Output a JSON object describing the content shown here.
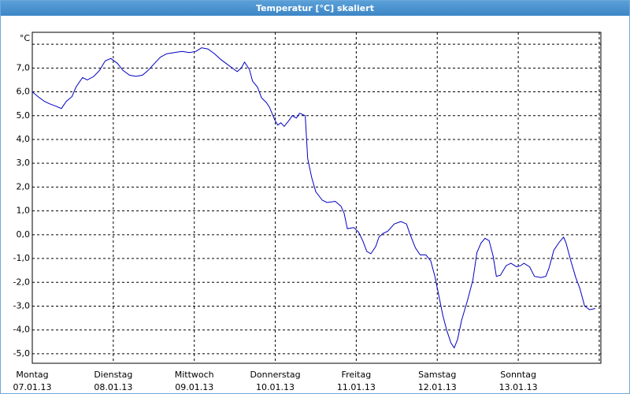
{
  "window_title": "Temperatur [°C] skaliert",
  "chart_data": {
    "type": "line",
    "xlim": [
      0,
      7.02
    ],
    "ylim": [
      -5.4,
      8.5
    ],
    "grid": true,
    "xticks": [
      {
        "value": 0,
        "label": "Montag",
        "date": "07.01.13"
      },
      {
        "value": 1,
        "label": "Dienstag",
        "date": "08.01.13"
      },
      {
        "value": 2,
        "label": "Mittwoch",
        "date": "09.01.13"
      },
      {
        "value": 3,
        "label": "Donnerstag",
        "date": "10.01.13"
      },
      {
        "value": 4,
        "label": "Freitag",
        "date": "11.01.13"
      },
      {
        "value": 5,
        "label": "Samstag",
        "date": "12.01.13"
      },
      {
        "value": 6,
        "label": "Sonntag",
        "date": "13.01.13"
      },
      {
        "value": 7
      }
    ],
    "yticks": [
      {
        "value": -5,
        "label": "-5,0"
      },
      {
        "value": -4,
        "label": "-4,0"
      },
      {
        "value": -3,
        "label": "-3,0"
      },
      {
        "value": -2,
        "label": "-2,0"
      },
      {
        "value": -1,
        "label": "-1,0"
      },
      {
        "value": 0,
        "label": "0,0"
      },
      {
        "value": 1,
        "label": "1,0"
      },
      {
        "value": 2,
        "label": "2,0"
      },
      {
        "value": 3,
        "label": "3,0"
      },
      {
        "value": 4,
        "label": "4,0"
      },
      {
        "value": 5,
        "label": "5,0"
      },
      {
        "value": 6,
        "label": "6,0"
      },
      {
        "value": 7,
        "label": "7,0"
      },
      {
        "value": 8,
        "label": "°C"
      }
    ],
    "series": [
      {
        "color": "#0000c0",
        "x": [
          0,
          0.07,
          0.15,
          0.21,
          0.29,
          0.36,
          0.42,
          0.49,
          0.54,
          0.62,
          0.68,
          0.76,
          0.83,
          0.9,
          0.97,
          1.05,
          1.12,
          1.2,
          1.28,
          1.36,
          1.43,
          1.51,
          1.58,
          1.66,
          1.75,
          1.85,
          1.94,
          2.02,
          2.09,
          2.17,
          2.25,
          2.33,
          2.43,
          2.53,
          2.58,
          2.62,
          2.68,
          2.72,
          2.78,
          2.83,
          2.89,
          2.93,
          2.99,
          3.03,
          3.07,
          3.11,
          3.17,
          3.21,
          3.26,
          3.3,
          3.37,
          3.4,
          3.45,
          3.5,
          3.58,
          3.64,
          3.74,
          3.81,
          3.85,
          3.89,
          3.97,
          4.03,
          4.08,
          4.13,
          4.18,
          4.24,
          4.28,
          4.33,
          4.39,
          4.47,
          4.55,
          4.62,
          4.66,
          4.73,
          4.79,
          4.86,
          4.92,
          4.97,
          5.01,
          5.07,
          5.12,
          5.17,
          5.21,
          5.25,
          5.3,
          5.37,
          5.44,
          5.49,
          5.54,
          5.59,
          5.64,
          5.69,
          5.73,
          5.78,
          5.85,
          5.91,
          5.98,
          6.03,
          6.07,
          6.14,
          6.2,
          6.28,
          6.34,
          6.38,
          6.44,
          6.51,
          6.56,
          6.59,
          6.65,
          6.71,
          6.76,
          6.82,
          6.88,
          6.95
        ],
        "values": [
          6.0,
          5.8,
          5.6,
          5.5,
          5.4,
          5.3,
          5.6,
          5.8,
          6.2,
          6.6,
          6.5,
          6.65,
          6.9,
          7.3,
          7.4,
          7.2,
          6.9,
          6.7,
          6.65,
          6.7,
          6.9,
          7.2,
          7.45,
          7.6,
          7.65,
          7.7,
          7.65,
          7.7,
          7.85,
          7.8,
          7.6,
          7.35,
          7.1,
          6.85,
          7.0,
          7.25,
          6.95,
          6.45,
          6.2,
          5.75,
          5.55,
          5.35,
          4.85,
          4.6,
          4.7,
          4.55,
          4.8,
          5.0,
          4.9,
          5.1,
          5.0,
          3.2,
          2.4,
          1.8,
          1.45,
          1.35,
          1.4,
          1.2,
          0.9,
          0.25,
          0.3,
          0.1,
          -0.25,
          -0.7,
          -0.8,
          -0.5,
          -0.1,
          0.05,
          0.15,
          0.45,
          0.55,
          0.45,
          0.05,
          -0.55,
          -0.85,
          -0.85,
          -1.1,
          -1.75,
          -2.4,
          -3.4,
          -4.05,
          -4.55,
          -4.75,
          -4.4,
          -3.6,
          -2.8,
          -1.9,
          -0.75,
          -0.35,
          -0.15,
          -0.25,
          -0.9,
          -1.75,
          -1.7,
          -1.3,
          -1.2,
          -1.35,
          -1.3,
          -1.2,
          -1.35,
          -1.75,
          -1.8,
          -1.75,
          -1.4,
          -0.65,
          -0.3,
          -0.1,
          -0.35,
          -1.1,
          -1.8,
          -2.25,
          -3.0,
          -3.15,
          -3.1
        ]
      }
    ]
  }
}
